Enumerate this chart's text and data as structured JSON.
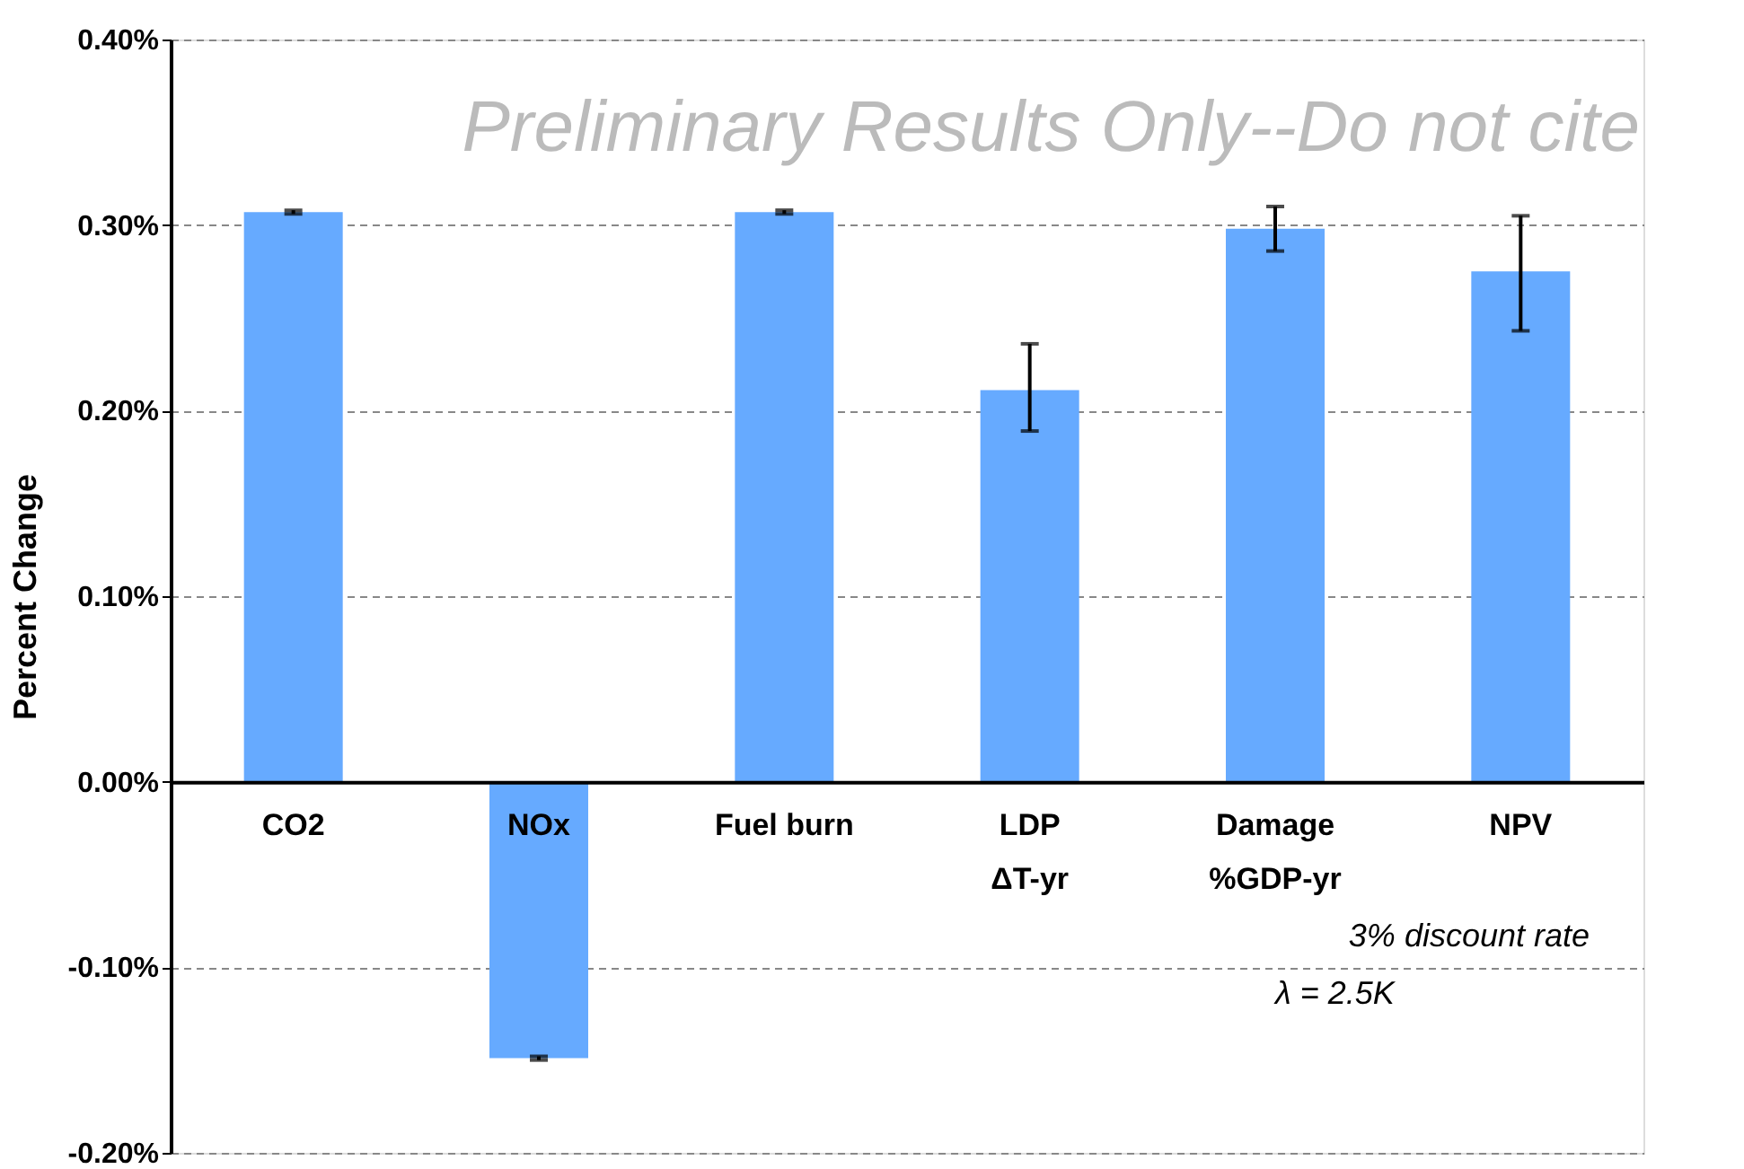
{
  "chart_data": {
    "type": "bar",
    "ylabel": "Percent Change",
    "categories": [
      "CO2",
      "NOx",
      "Fuel burn",
      "LDP\nΔT-yr",
      "Damage\n%GDP-yr",
      "NPV"
    ],
    "values": [
      0.307,
      -0.149,
      0.307,
      0.211,
      0.298,
      0.275
    ],
    "errors": [
      [
        0.306,
        0.308
      ],
      [
        -0.15,
        -0.148
      ],
      [
        0.306,
        0.308
      ],
      [
        0.189,
        0.236
      ],
      [
        0.286,
        0.31
      ],
      [
        0.243,
        0.305
      ]
    ],
    "color": "#66aaff",
    "ylim": [
      -0.2,
      0.4
    ],
    "yticks": [
      {
        "value": -0.2,
        "label": "-0.20%"
      },
      {
        "value": -0.1,
        "label": "-0.10%"
      },
      {
        "value": 0,
        "label": "0.00%"
      },
      {
        "value": 0.1,
        "label": "0.10%"
      },
      {
        "value": 0.2,
        "label": "0.20%"
      },
      {
        "value": 0.3,
        "label": "0.30%"
      },
      {
        "value": 0.4,
        "label": "0.40%"
      }
    ],
    "grid": "y",
    "annotations": [
      "Preliminary Results Only--Do not cite",
      "3% discount rate",
      "λ = 2.5K"
    ]
  }
}
